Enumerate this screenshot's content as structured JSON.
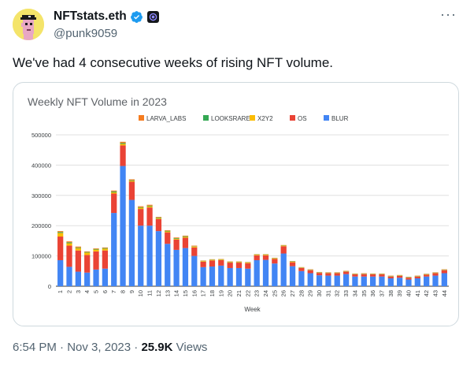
{
  "author": {
    "display_name": "NFTstats.eth",
    "handle": "@punk9059"
  },
  "tweet": {
    "text": "We've had 4 consecutive weeks of rising NFT volume.",
    "time": "6:54 PM",
    "date": "Nov 3, 2023",
    "separator": "·",
    "views_count": "25.9K",
    "views_label": "Views"
  },
  "icons": [
    "avatar-punk",
    "verified-badge-icon",
    "affiliate-icon",
    "more-icon"
  ],
  "colors": {
    "LARVA_LABS": "#f57c1f",
    "LOOKSRARE": "#34a853",
    "X2Y2": "#fbbc04",
    "OS": "#ea4335",
    "BLUR": "#4285f4"
  },
  "chart_data": {
    "type": "bar",
    "stacked": true,
    "title": "Weekly NFT Volume in 2023",
    "xlabel": "Week",
    "ylabel": "",
    "ylim": [
      0,
      500000
    ],
    "yticks": [
      "0",
      "100000",
      "200000",
      "300000",
      "400000",
      "500000"
    ],
    "legend": "top",
    "grid": true,
    "categories": [
      "1",
      "2",
      "3",
      "4",
      "5",
      "6",
      "7",
      "8",
      "9",
      "10",
      "11",
      "12",
      "13",
      "14",
      "15",
      "16",
      "17",
      "18",
      "19",
      "20",
      "21",
      "22",
      "23",
      "24",
      "25",
      "26",
      "27",
      "28",
      "29",
      "30",
      "31",
      "32",
      "33",
      "34",
      "35",
      "36",
      "37",
      "38",
      "39",
      "40",
      "41",
      "42",
      "43",
      "44"
    ],
    "series": [
      {
        "name": "LARVA_LABS",
        "values": [
          3000,
          3000,
          3000,
          2000,
          2000,
          2000,
          3000,
          4000,
          3000,
          3000,
          3000,
          2000,
          2000,
          2000,
          2000,
          2000,
          1000,
          1000,
          1000,
          1000,
          1000,
          1000,
          1000,
          1000,
          1000,
          1000,
          1000,
          1000,
          1000,
          1000,
          1000,
          1000,
          1000,
          1000,
          1000,
          1000,
          1000,
          1000,
          1000,
          1000,
          1000,
          1000,
          1000,
          1000
        ]
      },
      {
        "name": "LOOKSRARE",
        "values": [
          3000,
          3000,
          2000,
          2000,
          2000,
          2000,
          3000,
          3000,
          2000,
          2000,
          2000,
          2000,
          2000,
          2000,
          2000,
          1000,
          1000,
          1000,
          1000,
          1000,
          1000,
          1000,
          1000,
          1000,
          1000,
          1000,
          1000,
          1000,
          1000,
          1000,
          1000,
          1000,
          1000,
          1000,
          1000,
          1000,
          1000,
          1000,
          1000,
          1000,
          1000,
          1000,
          1000,
          1000
        ]
      },
      {
        "name": "X2Y2",
        "values": [
          12000,
          8000,
          8000,
          8000,
          6000,
          6000,
          4000,
          5000,
          3000,
          4000,
          4000,
          3000,
          3000,
          3000,
          3000,
          3000,
          2000,
          2000,
          2000,
          2000,
          2000,
          2000,
          2000,
          2000,
          2000,
          2000,
          2000,
          1000,
          1000,
          1000,
          1000,
          1000,
          1000,
          1000,
          1000,
          1000,
          1000,
          1000,
          1000,
          1000,
          1000,
          1000,
          1000,
          1000
        ]
      },
      {
        "name": "OS",
        "values": [
          78000,
          70000,
          70000,
          58000,
          60000,
          60000,
          64000,
          68000,
          60000,
          55000,
          60000,
          40000,
          38000,
          34000,
          34000,
          28000,
          18000,
          20000,
          18000,
          18000,
          18000,
          18000,
          16000,
          15000,
          15000,
          24000,
          13000,
          10000,
          10000,
          8000,
          8000,
          8000,
          8000,
          7000,
          8000,
          7000,
          7000,
          6000,
          6000,
          6000,
          6000,
          6000,
          8000,
          10000
        ]
      },
      {
        "name": "BLUR",
        "values": [
          86000,
          64000,
          48000,
          45000,
          55000,
          58000,
          242000,
          397000,
          285000,
          200000,
          200000,
          182000,
          140000,
          120000,
          126000,
          100000,
          63000,
          65000,
          68000,
          60000,
          60000,
          58000,
          86000,
          87000,
          75000,
          108000,
          66000,
          50000,
          43000,
          36000,
          35000,
          35000,
          40000,
          32000,
          32000,
          32000,
          32000,
          26000,
          28000,
          22000,
          26000,
          32000,
          35000,
          43000
        ]
      }
    ]
  }
}
